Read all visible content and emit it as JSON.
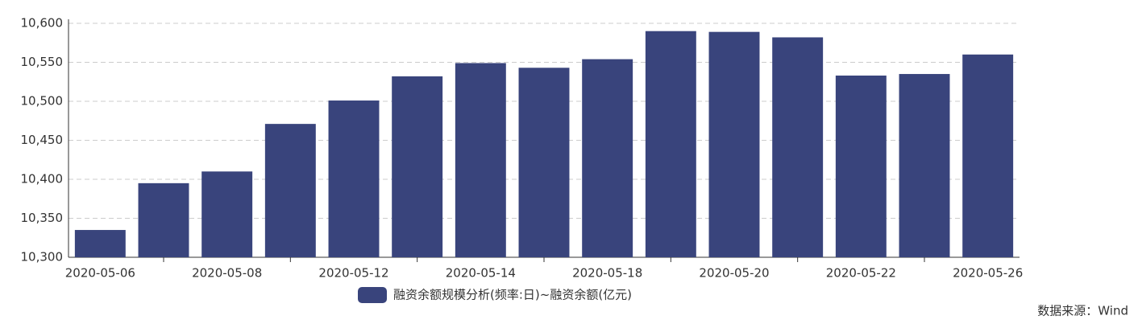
{
  "chart_data": {
    "type": "bar",
    "categories": [
      "2020-05-06",
      null,
      "2020-05-08",
      null,
      "2020-05-12",
      null,
      "2020-05-14",
      null,
      "2020-05-18",
      null,
      "2020-05-20",
      null,
      "2020-05-22",
      null,
      "2020-05-26"
    ],
    "series": [
      {
        "name": "融资余额规模分析(频率:日)~融资余额(亿元)",
        "color": "#39447c",
        "values": [
          10335,
          10395,
          10410,
          10471,
          10501,
          10532,
          10549,
          10543,
          10554,
          10590,
          10589,
          10582,
          10533,
          10535,
          10560
        ]
      }
    ],
    "ylim": [
      10300,
      10600
    ],
    "yticks": [
      {
        "value": 10300,
        "label": "10,300"
      },
      {
        "value": 10350,
        "label": "10,350"
      },
      {
        "value": 10400,
        "label": "10,400"
      },
      {
        "value": 10450,
        "label": "10,450"
      },
      {
        "value": 10500,
        "label": "10,500"
      },
      {
        "value": 10550,
        "label": "10,550"
      },
      {
        "value": 10600,
        "label": "10,600"
      }
    ],
    "grid": true,
    "source": "数据来源：Wind"
  }
}
